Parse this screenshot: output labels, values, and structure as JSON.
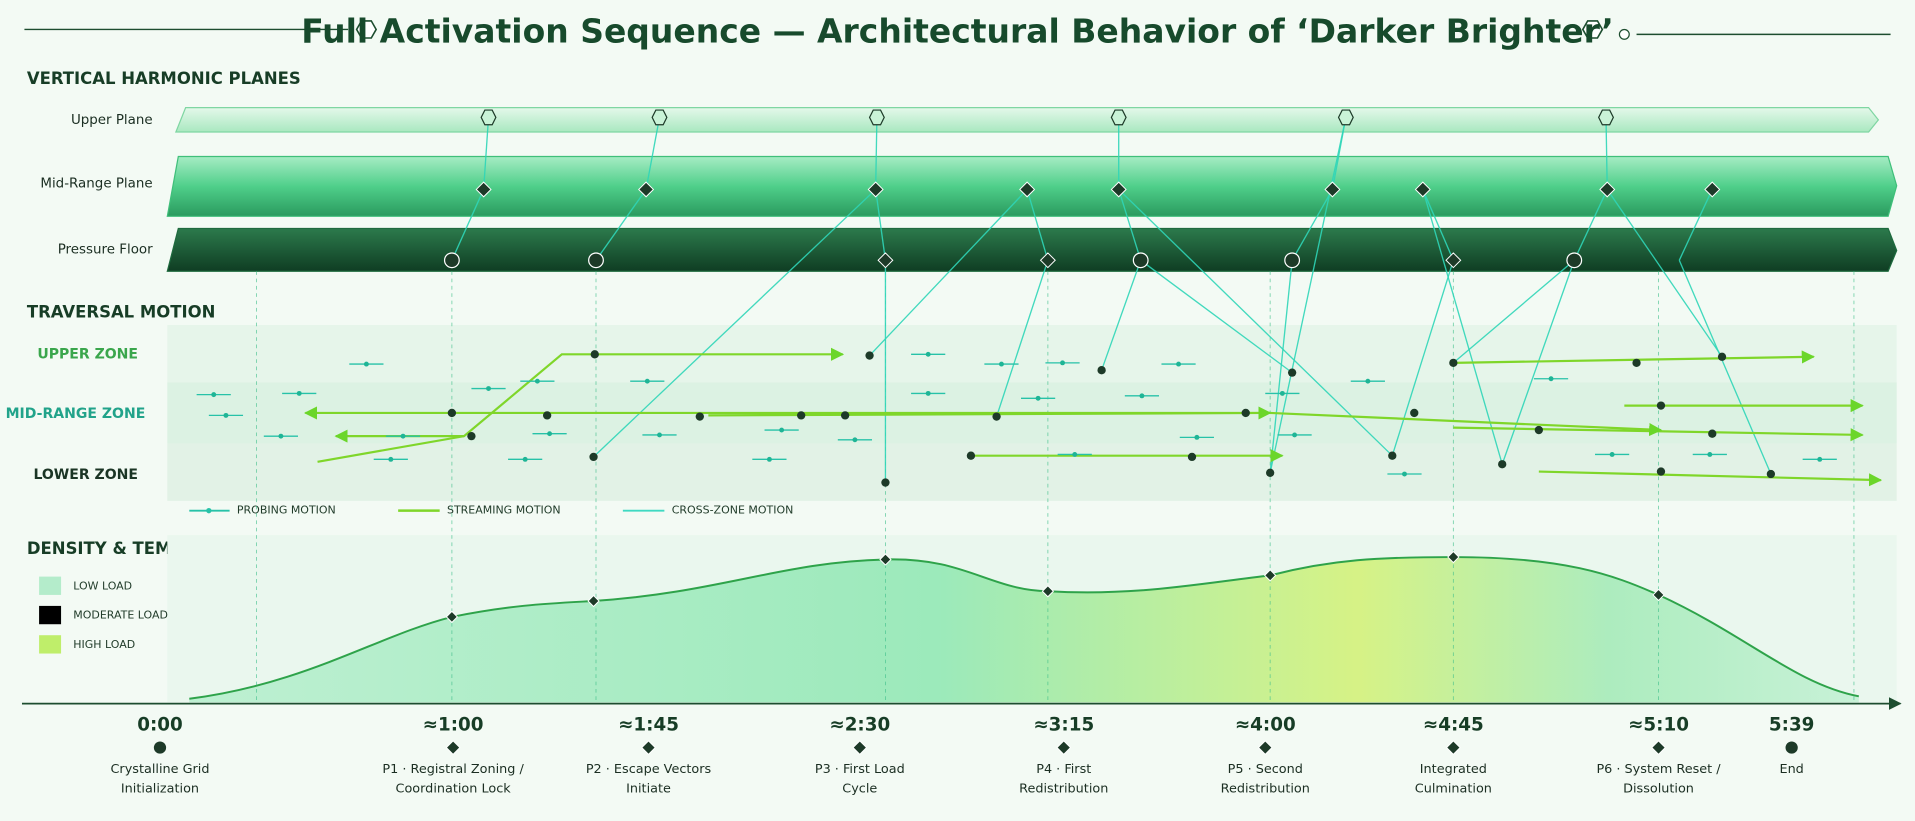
{
  "title": "Full Activation Sequence — Architectural Behavior of ‘Darker Brighter’",
  "planes": {
    "heading": "VERTICAL HARMONIC PLANES",
    "labels": [
      "Upper Plane",
      "Mid-Range Plane",
      "Pressure Floor"
    ]
  },
  "traversal": {
    "heading": "TRAVERSAL MOTION",
    "zones": [
      "UPPER ZONE",
      "MID-RANGE ZONE",
      "LOWER ZONE"
    ],
    "legend": [
      "PROBING MOTION",
      "STREAMING MOTION",
      "CROSS-ZONE MOTION"
    ]
  },
  "density": {
    "heading": "DENSITY & TEMPORAL GRID",
    "legend": [
      "LOW LOAD",
      "MODERATE LOAD",
      "HIGH LOAD"
    ]
  },
  "timeline": [
    {
      "time": "0:00",
      "label": [
        "Crystalline Grid",
        "Initialization"
      ]
    },
    {
      "time": "≈1:00",
      "label": [
        "P1 · Registral Zoning /",
        "Coordination Lock"
      ]
    },
    {
      "time": "≈1:45",
      "label": [
        "P2 · Escape Vectors",
        "Initiate"
      ]
    },
    {
      "time": "≈2:30",
      "label": [
        "P3 · First Load",
        "Cycle"
      ]
    },
    {
      "time": "≈3:15",
      "label": [
        "P4 · First",
        "Redistribution"
      ]
    },
    {
      "time": "≈4:00",
      "label": [
        "P5 · Second",
        "Redistribution"
      ]
    },
    {
      "time": "≈4:45",
      "label": [
        "Integrated",
        "Culmination"
      ]
    },
    {
      "time": "≈5:10",
      "label": [
        "P6 · System Reset /",
        "Dissolution"
      ]
    },
    {
      "time": "5:39",
      "label": [
        "End"
      ]
    }
  ]
}
